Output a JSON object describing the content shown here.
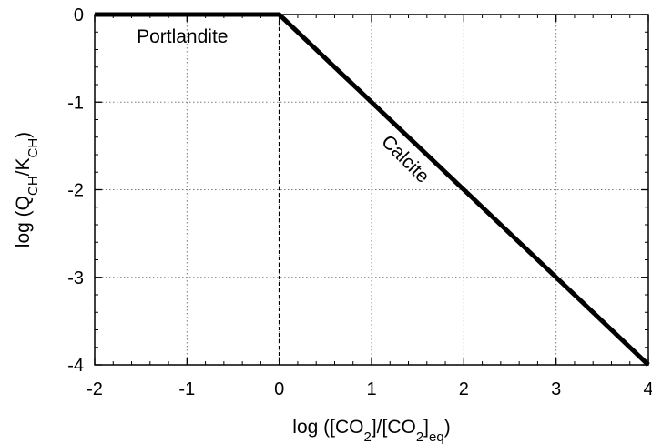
{
  "chart_data": {
    "type": "line",
    "xlabel": {
      "base": "log ([CO",
      "sub1": "2",
      "mid": "]/[CO",
      "sub2": "2",
      "end": "]",
      "sub3": "eq",
      "close": ")"
    },
    "ylabel": {
      "base": "log (Q",
      "sub1": "CH",
      "mid": "/K",
      "sub2": "CH",
      "close": ")"
    },
    "xlim": [
      -2,
      4
    ],
    "ylim": [
      -4,
      0
    ],
    "x_ticks": [
      "-2",
      "-1",
      "0",
      "1",
      "2",
      "3",
      "4"
    ],
    "y_ticks": [
      "0",
      "-1",
      "-2",
      "-3",
      "-4"
    ],
    "grid": true,
    "series": [
      {
        "x": [
          -2,
          0,
          4
        ],
        "y": [
          0,
          0,
          -4
        ],
        "color": "#000000"
      }
    ],
    "vertical_dashed_line_x": 0,
    "annotations": [
      {
        "text": "Portlandite",
        "x": -1.05,
        "y": -0.32,
        "rotation": 0
      },
      {
        "text": "Calcite",
        "x": 1.32,
        "y": -1.7,
        "rotation": 45
      }
    ]
  }
}
